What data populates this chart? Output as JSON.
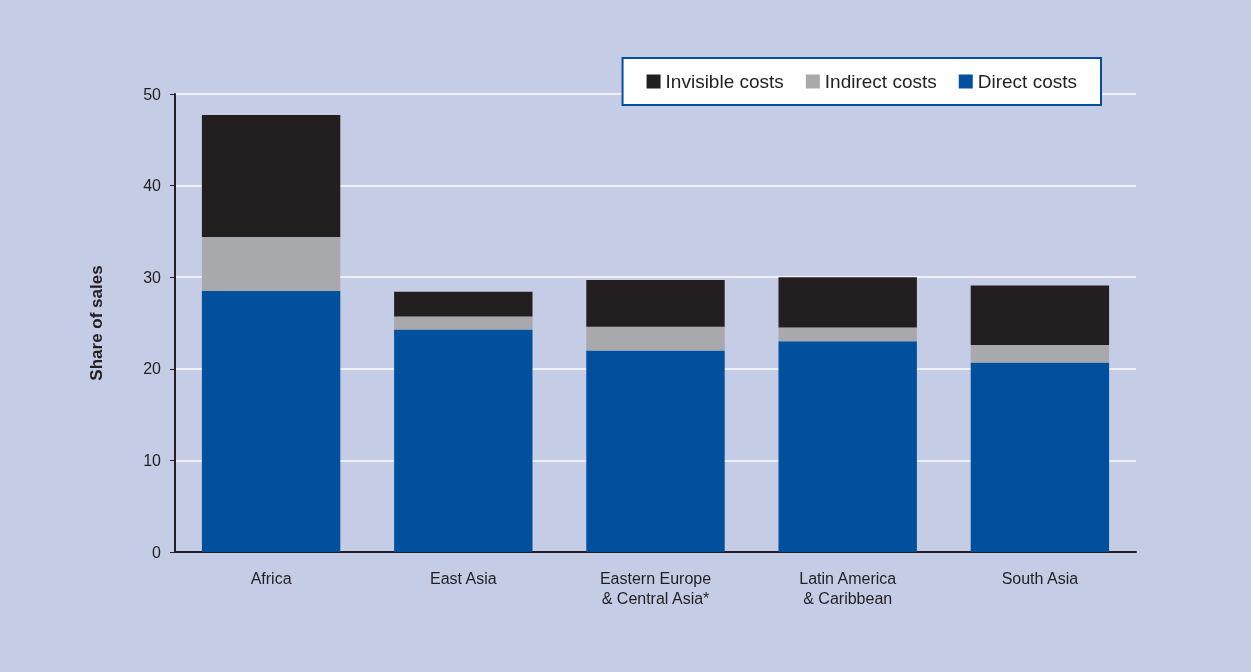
{
  "chart_data": {
    "type": "bar",
    "stacked": true,
    "ylabel": "Share of sales",
    "categories": [
      "Africa",
      "East Asia",
      "Eastern Europe\n& Central Asia*",
      "Latin America\n& Caribbean",
      "South Asia"
    ],
    "series": [
      {
        "name": "Direct costs",
        "color": "#00509e",
        "values": [
          28.5,
          24.3,
          22.0,
          23.0,
          20.7
        ]
      },
      {
        "name": "Indirect costs",
        "color": "#a7a9ac",
        "values": [
          5.9,
          1.4,
          2.6,
          1.5,
          1.9
        ]
      },
      {
        "name": "Invisible costs",
        "color": "#231f20",
        "values": [
          13.3,
          2.7,
          5.1,
          5.5,
          6.5
        ]
      }
    ],
    "ylim": [
      0,
      50
    ],
    "yticks": [
      0,
      10,
      20,
      30,
      40,
      50
    ],
    "grid": "y",
    "legend": "top right"
  }
}
